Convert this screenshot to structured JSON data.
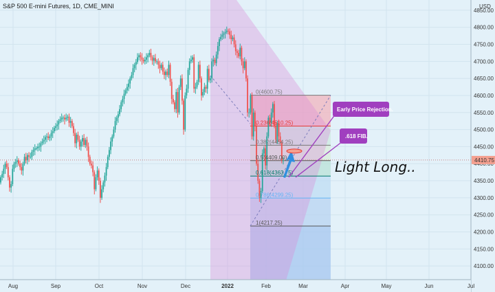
{
  "header": {
    "title": "S&P 500 E-mini Futures, 1D, CME_MINI",
    "currency": "USD"
  },
  "colors": {
    "background": "#e3f1f9",
    "up": "#26a69a",
    "down": "#ef5350",
    "channel": "#d98ad6",
    "annotation": "#a03fbf",
    "price_tag": "#f4a090"
  },
  "chart_data": {
    "type": "candlestick",
    "title": "S&P 500 E-mini Futures, 1D, CME_MINI",
    "last_price": 4410.75,
    "last_price_label": "4410.75",
    "ylim": [
      4060,
      4880
    ],
    "y_ticks": [
      4100,
      4150,
      4200,
      4250,
      4300,
      4350,
      4400,
      4450,
      4500,
      4550,
      4600,
      4650,
      4700,
      4750,
      4800,
      4850
    ],
    "y_tick_labels": [
      "4100.00",
      "4150.00",
      "4200.00",
      "4250.00",
      "4300.00",
      "4350.00",
      "4400.00",
      "4450.00",
      "4500.00",
      "4550.00",
      "4600.00",
      "4650.00",
      "4700.00",
      "4750.00",
      "4800.00",
      "4850.00"
    ],
    "x_labels": [
      "Aug",
      "Sep",
      "Oct",
      "Nov",
      "Dec",
      "2022",
      "Feb",
      "Mar",
      "Apr",
      "May",
      "Jun",
      "Jul"
    ],
    "x_label_days": [
      19,
      81,
      144,
      207,
      270,
      331,
      387,
      441,
      502,
      562,
      624,
      685
    ],
    "grid": true,
    "bar_days": 226,
    "closes": [
      4360,
      4370,
      4385,
      4400,
      4390,
      4360,
      4330,
      4340,
      4385,
      4400,
      4405,
      4410,
      4400,
      4390,
      4380,
      4400,
      4420,
      4410,
      4425,
      4420,
      4420,
      4435,
      4440,
      4445,
      4445,
      4450,
      4450,
      4460,
      4465,
      4470,
      4478,
      4480,
      4475,
      4480,
      4490,
      4495,
      4505,
      4510,
      4515,
      4525,
      4530,
      4535,
      4535,
      4530,
      4535,
      4538,
      4520,
      4525,
      4510,
      4490,
      4460,
      4485,
      4470,
      4450,
      4465,
      4475,
      4455,
      4470,
      4450,
      4420,
      4400,
      4395,
      4375,
      4325,
      4360,
      4380,
      4350,
      4300,
      4325,
      4345,
      4365,
      4390,
      4420,
      4440,
      4465,
      4480,
      4500,
      4525,
      4535,
      4545,
      4560,
      4580,
      4590,
      4605,
      4615,
      4625,
      4635,
      4650,
      4660,
      4680,
      4690,
      4698,
      4712,
      4718,
      4712,
      4705,
      4700,
      4705,
      4712,
      4718,
      4725,
      4712,
      4702,
      4710,
      4700,
      4700,
      4690,
      4680,
      4690,
      4670,
      4660,
      4670,
      4660,
      4690,
      4640,
      4590,
      4580,
      4560,
      4610,
      4550,
      4625,
      4650,
      4585,
      4500,
      4600,
      4620,
      4675,
      4700,
      4705,
      4712,
      4620,
      4625,
      4640,
      4690,
      4650,
      4600,
      4610,
      4625,
      4620,
      4678,
      4645,
      4650,
      4700,
      4705,
      4695,
      4720,
      4745,
      4765,
      4772,
      4778,
      4782,
      4786,
      4790,
      4788,
      4778,
      4765,
      4770,
      4750,
      4730,
      4725,
      4715,
      4740,
      4700,
      4680,
      4700,
      4650,
      4550,
      4550,
      4600,
      4480,
      4550,
      4510,
      4400,
      4350,
      4300,
      4320,
      4430,
      4445,
      4395,
      4480,
      4535,
      4520,
      4550,
      4575,
      4510,
      4470,
      4520,
      4480,
      4462,
      4410,
      4410
    ],
    "fib_retracement": {
      "levels": [
        {
          "ratio": "0",
          "price": 4600.75,
          "label": "0(4600.75)",
          "color": "#777777"
        },
        {
          "ratio": "0.236",
          "price": 4510.25,
          "label": "0.236(4510.25)",
          "color": "#e53935"
        },
        {
          "ratio": "0.382",
          "price": 4454.25,
          "label": "0.382(4454.25)",
          "color": "#777777"
        },
        {
          "ratio": "0.5",
          "price": 4409.0,
          "label": "0.5(4409.00)",
          "color": "#555555"
        },
        {
          "ratio": "0.618",
          "price": 4363.75,
          "label": "0.618(4363.75)",
          "color": "#00796b"
        },
        {
          "ratio": "0.786",
          "price": 4299.25,
          "label": "0.786(4299.25)",
          "color": "#64b5f6"
        },
        {
          "ratio": "1",
          "price": 4217.25,
          "label": "1(4217.25)",
          "color": "#555555"
        }
      ]
    },
    "annotations": {
      "callout_1": "Early Price Rejection.",
      "callout_2": ".618 FIB.",
      "note": "Light Long.."
    }
  }
}
